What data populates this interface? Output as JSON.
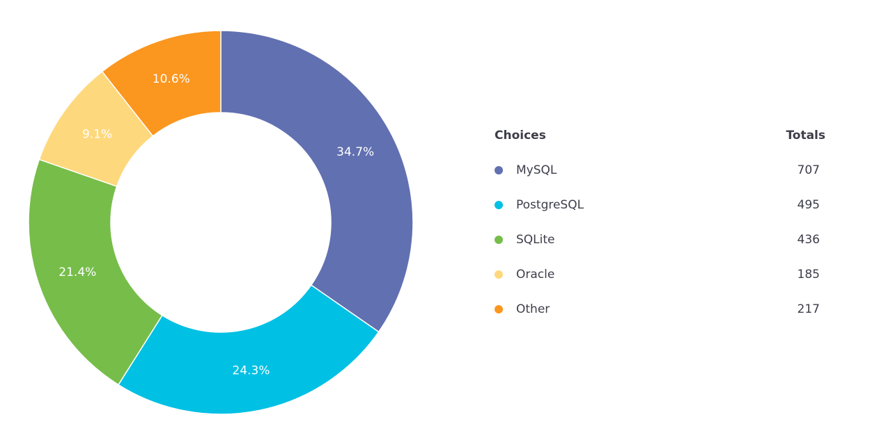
{
  "chart_data": {
    "type": "donut",
    "categories": [
      "MySQL",
      "PostgreSQL",
      "SQLite",
      "Oracle",
      "Other"
    ],
    "values": [
      34.7,
      24.3,
      21.4,
      9.1,
      10.6
    ],
    "value_labels": [
      "34.7%",
      "24.3%",
      "21.4%",
      "9.1%",
      "10.6%"
    ],
    "colors": [
      "#6170b0",
      "#00c0e4",
      "#76bd4a",
      "#fed87c",
      "#fb961f"
    ],
    "legend_header": [
      "Choices",
      "Totals"
    ],
    "totals": [
      707,
      495,
      436,
      185,
      217
    ]
  }
}
